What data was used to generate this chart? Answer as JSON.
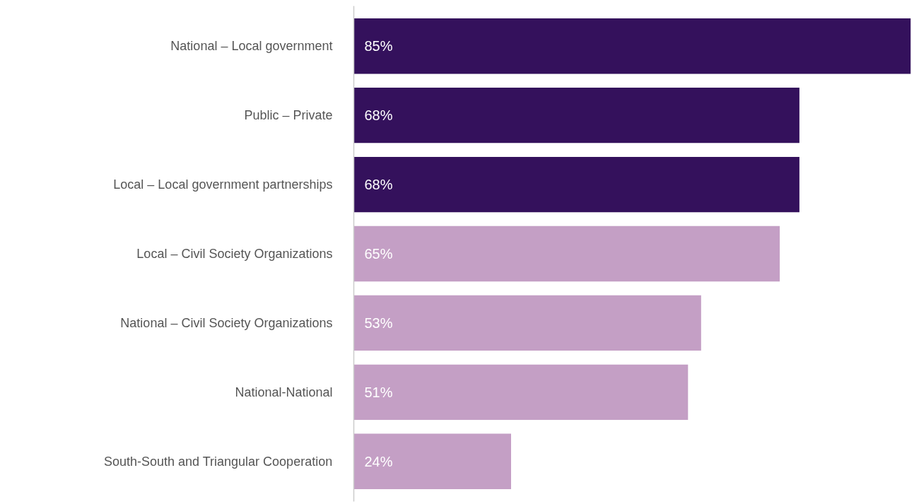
{
  "chart_data": {
    "type": "bar",
    "orientation": "horizontal",
    "categories": [
      "National – Local government",
      "Public – Private",
      "Local – Local government partnerships",
      "Local – Civil Society Organizations",
      "National – Civil Society Organizations",
      "National-National",
      "South-South and Triangular Cooperation"
    ],
    "values": [
      85,
      68,
      68,
      65,
      53,
      51,
      24
    ],
    "colors": [
      "#34115c",
      "#34115c",
      "#34115c",
      "#c49fc5",
      "#c49fc5",
      "#c49fc5",
      "#c49fc5"
    ],
    "value_labels": [
      "85%",
      "68%",
      "68%",
      "65%",
      "53%",
      "51%",
      "24%"
    ],
    "xlim": [
      0,
      85
    ],
    "grid": false
  }
}
